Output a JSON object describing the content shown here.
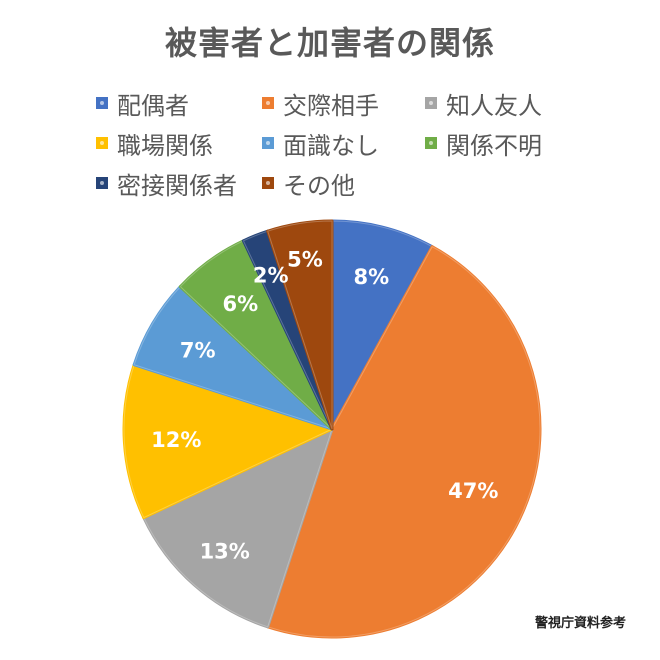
{
  "title": "被害者と加害者の関係",
  "source": "警視庁資料参考",
  "chart_data": {
    "type": "pie",
    "title": "被害者と加害者の関係",
    "legend_position": "top",
    "slices": [
      {
        "label": "配偶者",
        "value": 8,
        "color": "#4472C4"
      },
      {
        "label": "交際相手",
        "value": 47,
        "color": "#ED7D31"
      },
      {
        "label": "知人友人",
        "value": 13,
        "color": "#A5A5A5"
      },
      {
        "label": "職場関係",
        "value": 12,
        "color": "#FFC000"
      },
      {
        "label": "面識なし",
        "value": 7,
        "color": "#5B9BD5"
      },
      {
        "label": "関係不明",
        "value": 6,
        "color": "#70AD47"
      },
      {
        "label": "密接関係者",
        "value": 2,
        "color": "#264478"
      },
      {
        "label": "その他",
        "value": 5,
        "color": "#9E480E"
      }
    ]
  }
}
